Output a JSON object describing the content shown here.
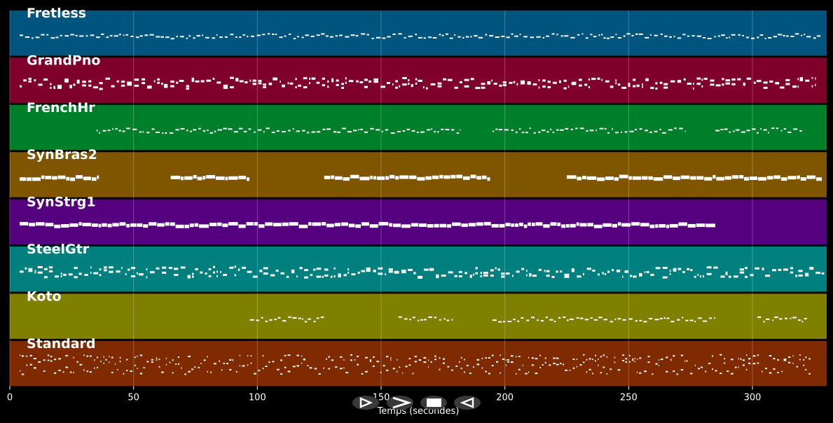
{
  "chart_data": {
    "type": "piano-roll",
    "xlabel": "Temps (secondes)",
    "xlim": [
      0,
      330
    ],
    "xticks": [
      0,
      50,
      100,
      150,
      200,
      250,
      300
    ],
    "grid": true,
    "tracks": [
      {
        "name": "Fretless",
        "color": "#00557f",
        "segments": [
          [
            4,
            328
          ]
        ],
        "style": "thin"
      },
      {
        "name": "GrandPno",
        "color": "#7f002a",
        "segments": [
          [
            4,
            326
          ]
        ],
        "style": "dense"
      },
      {
        "name": "FrenchHr",
        "color": "#007f2a",
        "segments": [
          [
            35,
            182
          ],
          [
            195,
            273
          ],
          [
            285,
            320
          ]
        ],
        "style": "thin"
      },
      {
        "name": "SynBras2",
        "color": "#7f5500",
        "segments": [
          [
            4,
            36
          ],
          [
            65,
            97
          ],
          [
            127,
            194
          ],
          [
            225,
            328
          ]
        ],
        "style": "block"
      },
      {
        "name": "SynStrg1",
        "color": "#55007f",
        "segments": [
          [
            4,
            285
          ]
        ],
        "style": "block"
      },
      {
        "name": "SteelGtr",
        "color": "#007f7f",
        "segments": [
          [
            4,
            329
          ]
        ],
        "style": "dense"
      },
      {
        "name": "Koto",
        "color": "#7f7f00",
        "segments": [
          [
            97,
            127
          ],
          [
            157,
            179
          ],
          [
            195,
            285
          ],
          [
            302,
            322
          ]
        ],
        "style": "thin"
      },
      {
        "name": "Standard",
        "color": "#7f2a00",
        "segments": [
          [
            4,
            324
          ]
        ],
        "style": "drums"
      }
    ]
  },
  "controls": {
    "play_icon": "play-icon",
    "forward_icon": "forward-icon",
    "stop_icon": "stop-icon",
    "rewind_icon": "rewind-icon"
  }
}
